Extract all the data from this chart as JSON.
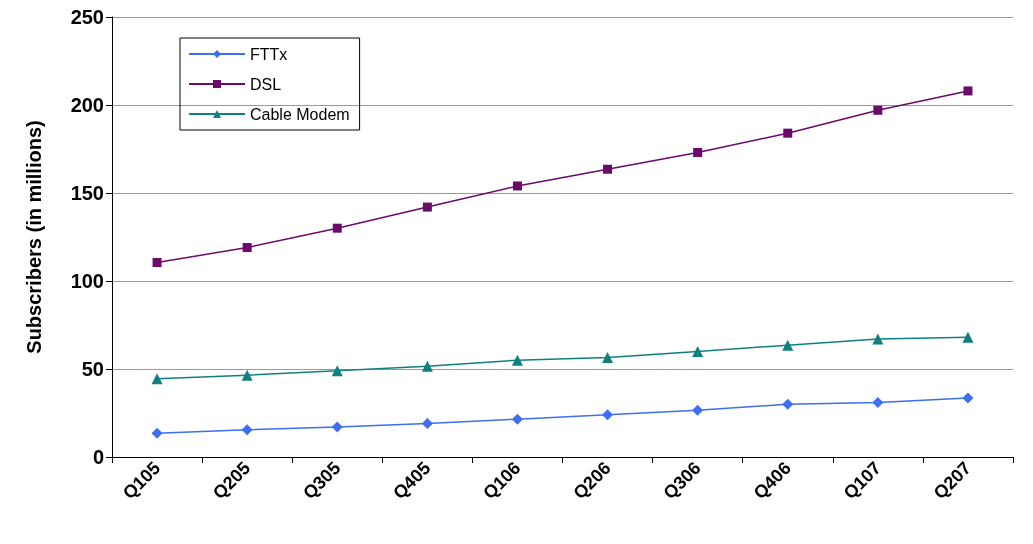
{
  "chart_data": {
    "type": "line",
    "ylabel": "Subscribers (in millions)",
    "categories": [
      "Q105",
      "Q205",
      "Q305",
      "Q405",
      "Q106",
      "Q206",
      "Q306",
      "Q406",
      "Q107",
      "Q207"
    ],
    "series": [
      {
        "name": "FTTx",
        "color": "#3d6ff0",
        "marker": "diamond",
        "values": [
          13.5,
          15.5,
          17,
          19,
          21.5,
          24,
          26.5,
          30,
          31,
          33.5
        ]
      },
      {
        "name": "DSL",
        "color": "#6a0a6a",
        "marker": "square",
        "values": [
          110.5,
          119,
          130,
          142,
          154,
          163.5,
          173,
          184,
          197,
          208
        ]
      },
      {
        "name": "Cable Modem",
        "color": "#0f8080",
        "marker": "triangle",
        "values": [
          44.5,
          46.5,
          49,
          51.5,
          55,
          56.5,
          60,
          63.5,
          67,
          68
        ]
      }
    ],
    "ylim": [
      0,
      250
    ],
    "yticks": [
      0,
      50,
      100,
      150,
      200,
      250
    ],
    "grid": "y",
    "legend": "top left"
  }
}
